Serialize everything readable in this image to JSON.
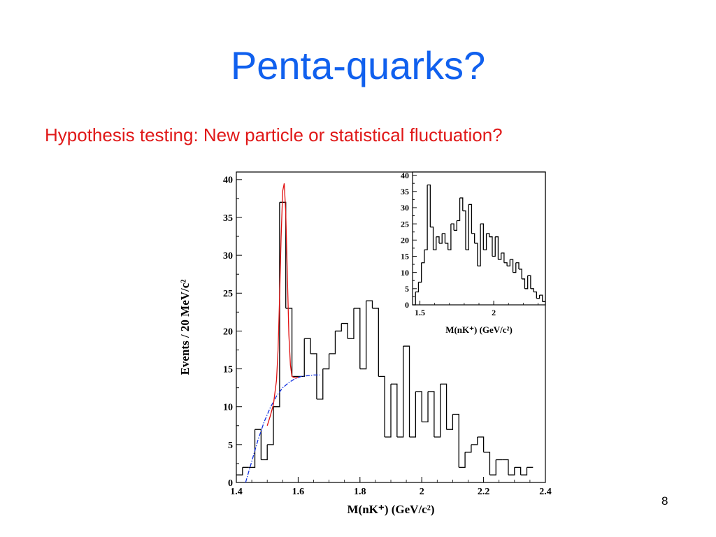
{
  "slide": {
    "title": "Penta-quarks?",
    "subtitle": "Hypothesis testing: New particle or statistical fluctuation?",
    "page_number": "8"
  },
  "colors": {
    "title": "#1060ee",
    "subtitle": "#e01818",
    "histogram": "#000000",
    "signal_fit": "#e01010",
    "background_fit": "#1030e0"
  },
  "chart_data": [
    {
      "type": "histogram",
      "xlabel": "M(nK⁺) (GeV/c²)",
      "ylabel": "Events / 20 MeV/c²",
      "xlim": [
        1.4,
        2.4
      ],
      "ylim": [
        0,
        41
      ],
      "x_ticks": [
        "1.4",
        "1.6",
        "1.8",
        "2",
        "2.2",
        "2.4"
      ],
      "y_ticks": [
        "0",
        "5",
        "10",
        "15",
        "20",
        "25",
        "30",
        "35",
        "40"
      ],
      "bin_width": 0.02,
      "bins": [
        {
          "x": 1.4,
          "y": 1
        },
        {
          "x": 1.42,
          "y": 2
        },
        {
          "x": 1.44,
          "y": 2
        },
        {
          "x": 1.46,
          "y": 7
        },
        {
          "x": 1.48,
          "y": 3
        },
        {
          "x": 1.5,
          "y": 5
        },
        {
          "x": 1.52,
          "y": 10
        },
        {
          "x": 1.54,
          "y": 37
        },
        {
          "x": 1.56,
          "y": 23
        },
        {
          "x": 1.58,
          "y": 14
        },
        {
          "x": 1.6,
          "y": 14
        },
        {
          "x": 1.62,
          "y": 19
        },
        {
          "x": 1.64,
          "y": 17
        },
        {
          "x": 1.66,
          "y": 11
        },
        {
          "x": 1.68,
          "y": 15
        },
        {
          "x": 1.7,
          "y": 17
        },
        {
          "x": 1.72,
          "y": 20
        },
        {
          "x": 1.74,
          "y": 21
        },
        {
          "x": 1.76,
          "y": 19
        },
        {
          "x": 1.78,
          "y": 23
        },
        {
          "x": 1.8,
          "y": 15
        },
        {
          "x": 1.82,
          "y": 24
        },
        {
          "x": 1.84,
          "y": 23
        },
        {
          "x": 1.86,
          "y": 14
        },
        {
          "x": 1.88,
          "y": 6
        },
        {
          "x": 1.9,
          "y": 13
        },
        {
          "x": 1.92,
          "y": 6
        },
        {
          "x": 1.94,
          "y": 18
        },
        {
          "x": 1.96,
          "y": 6
        },
        {
          "x": 1.98,
          "y": 12
        },
        {
          "x": 2.0,
          "y": 8
        },
        {
          "x": 2.02,
          "y": 12
        },
        {
          "x": 2.04,
          "y": 6
        },
        {
          "x": 2.06,
          "y": 13
        },
        {
          "x": 2.08,
          "y": 7
        },
        {
          "x": 2.1,
          "y": 9
        },
        {
          "x": 2.12,
          "y": 2
        },
        {
          "x": 2.14,
          "y": 4
        },
        {
          "x": 2.16,
          "y": 5
        },
        {
          "x": 2.18,
          "y": 6
        },
        {
          "x": 2.2,
          "y": 4
        },
        {
          "x": 2.22,
          "y": 1
        },
        {
          "x": 2.24,
          "y": 3
        },
        {
          "x": 2.26,
          "y": 3
        },
        {
          "x": 2.28,
          "y": 1
        },
        {
          "x": 2.3,
          "y": 2
        },
        {
          "x": 2.32,
          "y": 1
        },
        {
          "x": 2.34,
          "y": 2
        }
      ],
      "signal_fit": {
        "x": [
          1.5,
          1.51,
          1.52,
          1.53,
          1.535,
          1.54,
          1.545,
          1.55,
          1.555,
          1.56,
          1.565,
          1.57,
          1.575,
          1.58,
          1.59,
          1.6
        ],
        "y": [
          7.5,
          8.8,
          10.3,
          13.5,
          17.5,
          24.5,
          32.5,
          38.5,
          39.5,
          35.5,
          27.5,
          19.5,
          15.5,
          14.0,
          13.8,
          13.9
        ]
      },
      "background_fit": {
        "x": [
          1.43,
          1.45,
          1.47,
          1.49,
          1.51,
          1.53,
          1.55,
          1.57,
          1.59,
          1.61,
          1.63,
          1.65,
          1.67
        ],
        "y": [
          0,
          2.8,
          5.6,
          8.0,
          9.9,
          11.4,
          12.5,
          13.2,
          13.7,
          14.0,
          14.1,
          14.2,
          14.2
        ]
      }
    },
    {
      "type": "histogram",
      "xlabel": "M(nK⁺) (GeV/c²)",
      "xlim": [
        1.45,
        2.35
      ],
      "ylim": [
        0,
        41
      ],
      "x_ticks": [
        "1.5",
        "2"
      ],
      "y_ticks": [
        "0",
        "5",
        "10",
        "15",
        "20",
        "25",
        "30",
        "35",
        "40"
      ],
      "bin_width": 0.02,
      "bins": [
        {
          "x": 1.45,
          "y": 0
        },
        {
          "x": 1.47,
          "y": 4
        },
        {
          "x": 1.49,
          "y": 7
        },
        {
          "x": 1.51,
          "y": 13
        },
        {
          "x": 1.53,
          "y": 17
        },
        {
          "x": 1.55,
          "y": 37
        },
        {
          "x": 1.57,
          "y": 24
        },
        {
          "x": 1.59,
          "y": 17
        },
        {
          "x": 1.61,
          "y": 21
        },
        {
          "x": 1.63,
          "y": 19
        },
        {
          "x": 1.65,
          "y": 22
        },
        {
          "x": 1.67,
          "y": 19
        },
        {
          "x": 1.69,
          "y": 17
        },
        {
          "x": 1.71,
          "y": 25
        },
        {
          "x": 1.73,
          "y": 23
        },
        {
          "x": 1.75,
          "y": 26
        },
        {
          "x": 1.77,
          "y": 33
        },
        {
          "x": 1.79,
          "y": 29
        },
        {
          "x": 1.81,
          "y": 17
        },
        {
          "x": 1.83,
          "y": 31
        },
        {
          "x": 1.85,
          "y": 22
        },
        {
          "x": 1.87,
          "y": 19
        },
        {
          "x": 1.89,
          "y": 12
        },
        {
          "x": 1.91,
          "y": 25
        },
        {
          "x": 1.93,
          "y": 17
        },
        {
          "x": 1.95,
          "y": 22
        },
        {
          "x": 1.97,
          "y": 21
        },
        {
          "x": 1.99,
          "y": 15
        },
        {
          "x": 2.01,
          "y": 21
        },
        {
          "x": 2.03,
          "y": 14
        },
        {
          "x": 2.05,
          "y": 16
        },
        {
          "x": 2.07,
          "y": 13
        },
        {
          "x": 2.09,
          "y": 12
        },
        {
          "x": 2.11,
          "y": 14
        },
        {
          "x": 2.13,
          "y": 10
        },
        {
          "x": 2.15,
          "y": 13
        },
        {
          "x": 2.17,
          "y": 11
        },
        {
          "x": 2.19,
          "y": 8
        },
        {
          "x": 2.21,
          "y": 5
        },
        {
          "x": 2.23,
          "y": 9
        },
        {
          "x": 2.25,
          "y": 5
        },
        {
          "x": 2.27,
          "y": 4
        },
        {
          "x": 2.29,
          "y": 2
        },
        {
          "x": 2.31,
          "y": 3
        },
        {
          "x": 2.33,
          "y": 1
        }
      ]
    }
  ]
}
